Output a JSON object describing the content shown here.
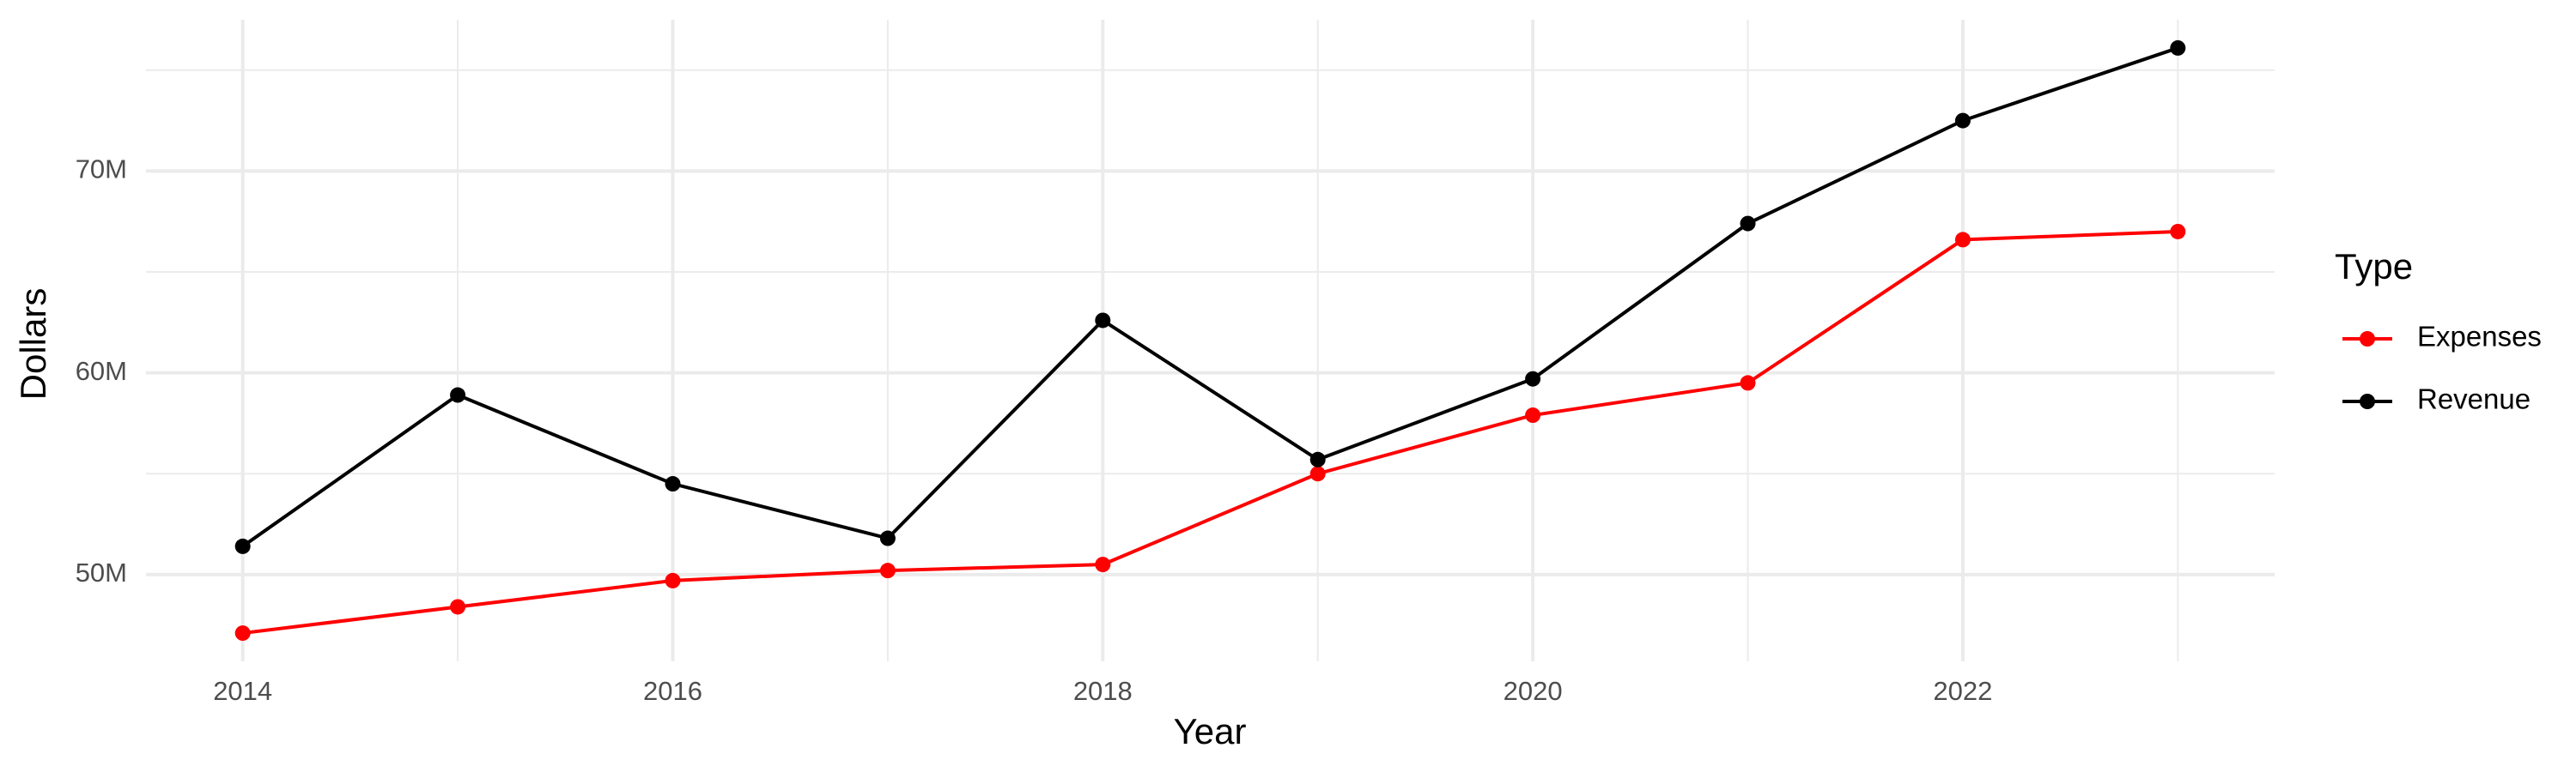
{
  "chart_data": {
    "type": "line",
    "x_label": "Year",
    "y_label": "Dollars",
    "legend_title": "Type",
    "legend_position": "right",
    "grid": true,
    "x": [
      2014,
      2015,
      2016,
      2017,
      2018,
      2019,
      2020,
      2021,
      2022,
      2023
    ],
    "series": [
      {
        "name": "Expenses",
        "color": "#ff0000",
        "values": [
          47100000,
          48400000,
          49700000,
          50200000,
          50500000,
          55000000,
          57900000,
          59500000,
          66600000,
          67000000
        ]
      },
      {
        "name": "Revenue",
        "color": "#000000",
        "values": [
          51400000,
          58900000,
          54500000,
          51800000,
          62600000,
          55700000,
          59700000,
          67400000,
          72500000,
          76100000
        ]
      }
    ],
    "xlim": [
      2013.55,
      2023.45
    ],
    "xticks": [
      2014,
      2016,
      2018,
      2020,
      2022
    ],
    "x_minor_ticks": [
      2015,
      2017,
      2019,
      2021,
      2023
    ],
    "ylim": [
      45700000,
      77500000
    ],
    "yticks": [
      {
        "value": 50000000,
        "label": "50M"
      },
      {
        "value": 60000000,
        "label": "60M"
      },
      {
        "value": 70000000,
        "label": "70M"
      }
    ],
    "y_minor_ticks": [
      55000000,
      65000000,
      75000000
    ]
  }
}
